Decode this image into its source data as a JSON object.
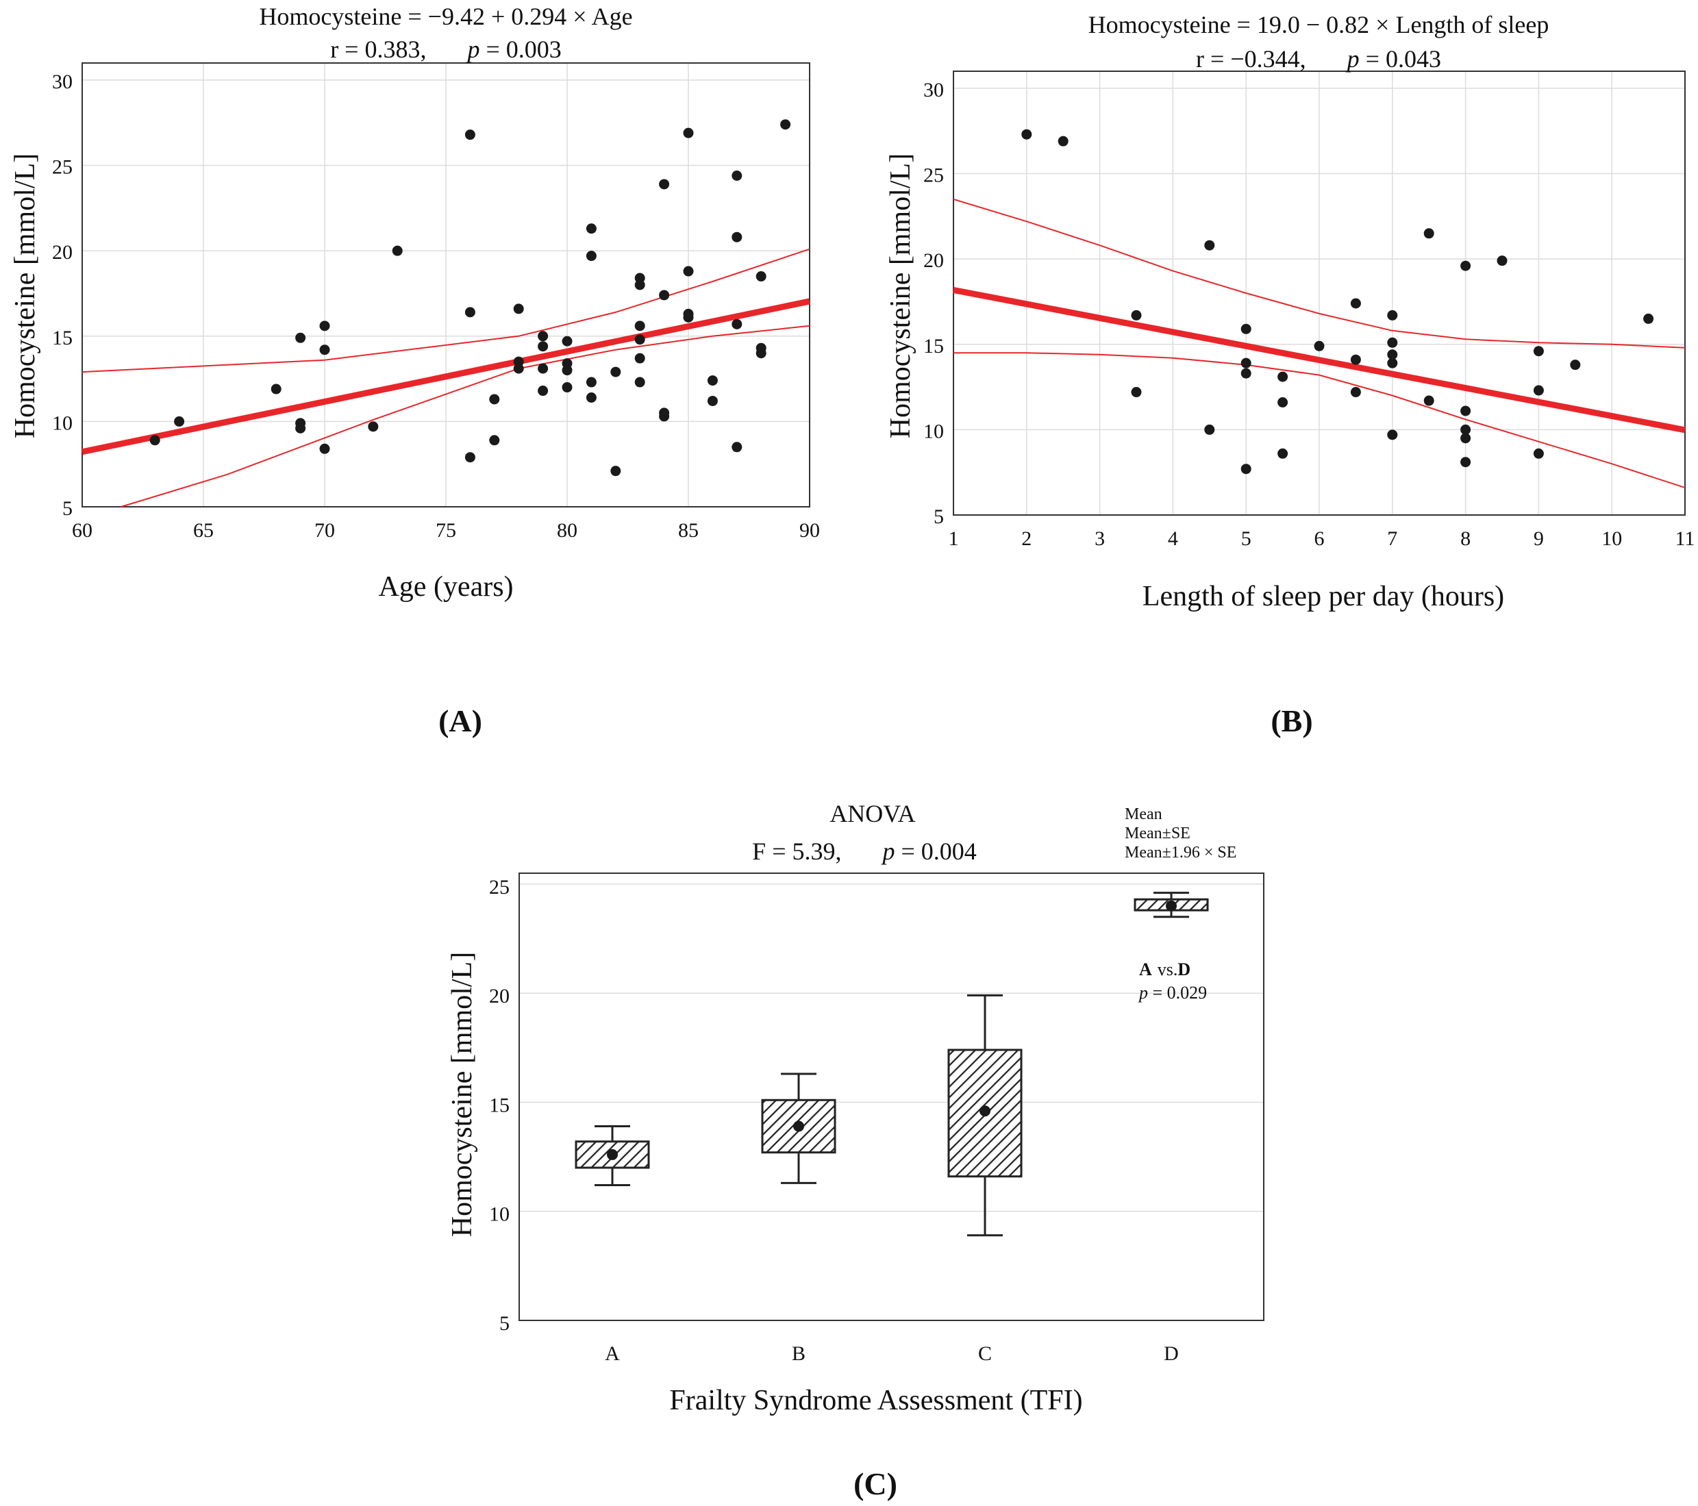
{
  "colors": {
    "fit": "#e8262a",
    "point": "#1a1a1a",
    "box": "#222222"
  },
  "panels": {
    "A": {
      "label": "(A)"
    },
    "B": {
      "label": "(B)"
    },
    "C": {
      "label": "(C)"
    }
  },
  "chart_data": [
    {
      "id": "A",
      "type": "scatter",
      "title": "Homocysteine = −9.42 + 0.294 × Age",
      "stats": {
        "r_text": "r = 0.383,",
        "p_label": "p",
        "p_value": " = 0.003"
      },
      "xlabel": "Age (years)",
      "ylabel": "Homocysteine [mmol/L]",
      "xlim": [
        60,
        90
      ],
      "ylim": [
        5,
        31
      ],
      "xticks": [
        60,
        65,
        70,
        75,
        80,
        85,
        90
      ],
      "yticks": [
        5,
        10,
        15,
        20,
        25,
        30
      ],
      "grid": true,
      "fit": {
        "intercept": -9.42,
        "slope": 0.294
      },
      "ci_upper": [
        [
          60,
          12.9
        ],
        [
          70,
          13.6
        ],
        [
          78,
          15.0
        ],
        [
          82,
          16.4
        ],
        [
          86,
          18.2
        ],
        [
          90,
          20.1
        ]
      ],
      "ci_lower": [
        [
          61.6,
          5.0
        ],
        [
          66,
          6.9
        ],
        [
          72,
          10.1
        ],
        [
          78,
          13.1
        ],
        [
          82,
          14.2
        ],
        [
          86,
          15.0
        ],
        [
          90,
          15.6
        ]
      ],
      "points": [
        [
          63,
          8.9
        ],
        [
          64,
          10.0
        ],
        [
          68,
          11.9
        ],
        [
          69,
          14.9
        ],
        [
          69,
          9.9
        ],
        [
          69,
          9.6
        ],
        [
          70,
          15.6
        ],
        [
          70,
          14.2
        ],
        [
          70,
          8.4
        ],
        [
          72,
          9.7
        ],
        [
          73,
          20.0
        ],
        [
          76,
          26.8
        ],
        [
          76,
          16.4
        ],
        [
          76,
          7.9
        ],
        [
          77,
          11.3
        ],
        [
          77,
          8.9
        ],
        [
          78,
          16.6
        ],
        [
          78,
          13.5
        ],
        [
          78,
          13.1
        ],
        [
          79,
          15.0
        ],
        [
          79,
          14.4
        ],
        [
          79,
          13.1
        ],
        [
          79,
          11.8
        ],
        [
          80,
          14.7
        ],
        [
          80,
          13.4
        ],
        [
          80,
          13.0
        ],
        [
          80,
          12.0
        ],
        [
          81,
          21.3
        ],
        [
          81,
          19.7
        ],
        [
          81,
          12.3
        ],
        [
          81,
          11.4
        ],
        [
          82,
          12.9
        ],
        [
          82,
          7.1
        ],
        [
          83,
          18.4
        ],
        [
          83,
          18.0
        ],
        [
          83,
          15.6
        ],
        [
          83,
          14.8
        ],
        [
          83,
          13.7
        ],
        [
          83,
          12.3
        ],
        [
          84,
          23.9
        ],
        [
          84,
          17.4
        ],
        [
          84,
          10.5
        ],
        [
          84,
          10.3
        ],
        [
          85,
          26.9
        ],
        [
          85,
          18.8
        ],
        [
          85,
          16.3
        ],
        [
          85,
          16.1
        ],
        [
          86,
          12.4
        ],
        [
          86,
          11.2
        ],
        [
          87,
          24.4
        ],
        [
          87,
          20.8
        ],
        [
          87,
          15.7
        ],
        [
          87,
          8.5
        ],
        [
          88,
          18.5
        ],
        [
          88,
          14.3
        ],
        [
          88,
          14.0
        ],
        [
          89,
          27.4
        ]
      ]
    },
    {
      "id": "B",
      "type": "scatter",
      "title": "Homocysteine = 19.0 − 0.82 × Length of sleep",
      "stats": {
        "r_text": "r = −0.344,",
        "p_label": "p",
        "p_value": " = 0.043"
      },
      "xlabel": "Length of sleep per day (hours)",
      "ylabel": "Homocysteine [mmol/L]",
      "xlim": [
        1,
        11
      ],
      "ylim": [
        5,
        31
      ],
      "xticks": [
        1,
        2,
        3,
        4,
        5,
        6,
        7,
        8,
        9,
        10,
        11
      ],
      "yticks": [
        5,
        10,
        15,
        20,
        25,
        30
      ],
      "grid": true,
      "fit": {
        "intercept": 19.0,
        "slope": -0.82
      },
      "ci_upper": [
        [
          1,
          23.5
        ],
        [
          2,
          22.2
        ],
        [
          3,
          20.8
        ],
        [
          4,
          19.3
        ],
        [
          5,
          18.0
        ],
        [
          6,
          16.8
        ],
        [
          7,
          15.8
        ],
        [
          8,
          15.3
        ],
        [
          9,
          15.1
        ],
        [
          10,
          15.0
        ],
        [
          11,
          14.8
        ]
      ],
      "ci_lower": [
        [
          1,
          14.5
        ],
        [
          2,
          14.5
        ],
        [
          3,
          14.4
        ],
        [
          4,
          14.2
        ],
        [
          5,
          13.8
        ],
        [
          6,
          13.2
        ],
        [
          7,
          12.0
        ],
        [
          8,
          10.6
        ],
        [
          9,
          9.3
        ],
        [
          10,
          8.0
        ],
        [
          11,
          6.6
        ]
      ],
      "points": [
        [
          2,
          27.3
        ],
        [
          2.5,
          26.9
        ],
        [
          3.5,
          16.7
        ],
        [
          3.5,
          12.2
        ],
        [
          4.5,
          20.8
        ],
        [
          4.5,
          10.0
        ],
        [
          5,
          15.9
        ],
        [
          5,
          13.9
        ],
        [
          5,
          13.3
        ],
        [
          5,
          7.7
        ],
        [
          5.5,
          13.1
        ],
        [
          5.5,
          11.6
        ],
        [
          5.5,
          8.6
        ],
        [
          6,
          14.9
        ],
        [
          6.5,
          17.4
        ],
        [
          6.5,
          14.1
        ],
        [
          6.5,
          12.2
        ],
        [
          7,
          16.7
        ],
        [
          7,
          15.1
        ],
        [
          7,
          14.4
        ],
        [
          7,
          13.9
        ],
        [
          7,
          9.7
        ],
        [
          7.5,
          21.5
        ],
        [
          7.5,
          11.7
        ],
        [
          8,
          19.6
        ],
        [
          8,
          11.1
        ],
        [
          8,
          10.0
        ],
        [
          8,
          9.5
        ],
        [
          8,
          8.1
        ],
        [
          8.5,
          19.9
        ],
        [
          9,
          14.6
        ],
        [
          9,
          12.3
        ],
        [
          9,
          8.6
        ],
        [
          9.5,
          13.8
        ],
        [
          10.5,
          16.5
        ]
      ]
    },
    {
      "id": "C",
      "type": "box",
      "title": "ANOVA",
      "stats": {
        "f_text": "F = 5.39,",
        "p_label": "p",
        "p_value": " = 0.004"
      },
      "xlabel": "Frailty Syndrome Assessment (TFI)",
      "ylabel": "Homocysteine [mmol/L]",
      "ylim": [
        5,
        25.5
      ],
      "yticks": [
        5,
        10,
        15,
        20,
        25
      ],
      "categories": [
        "A",
        "B",
        "C",
        "D"
      ],
      "mean": [
        12.6,
        13.9,
        14.6,
        24.0
      ],
      "box_low": [
        12.0,
        12.7,
        11.6,
        23.8
      ],
      "box_high": [
        13.2,
        15.1,
        17.4,
        24.3
      ],
      "whisker_low": [
        11.2,
        11.3,
        8.9,
        23.5
      ],
      "whisker_high": [
        13.9,
        16.3,
        19.9,
        24.6
      ],
      "legend": [
        "Mean",
        "Mean±SE",
        "Mean±1.96 × SE"
      ],
      "annotation": {
        "comparison_a": "A",
        "comparison_vs": "vs.",
        "comparison_b": "D",
        "p_label": "p",
        "p_value": " = 0.029"
      }
    }
  ]
}
